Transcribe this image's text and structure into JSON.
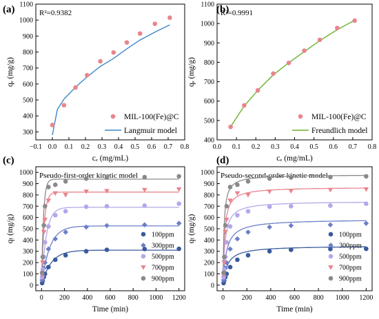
{
  "chart_data": [
    {
      "panel": "(a)",
      "type": "scatter",
      "annotation": "R²=0.9382",
      "xlabel": "cₑ (mg/mL)",
      "ylabel": "qₑ (mg/g)",
      "xlim": [
        -0.1,
        0.8
      ],
      "ylim": [
        250,
        1100
      ],
      "xticks": [
        "−0.1",
        "0.0",
        "0.1",
        "0.2",
        "0.3",
        "0.4",
        "0.5",
        "0.6",
        "0.7",
        "0.8"
      ],
      "yticks": [
        "300",
        "400",
        "500",
        "600",
        "700",
        "800",
        "900",
        "1000",
        "1100"
      ],
      "series": [
        {
          "name": "MIL-100(Fe)@C",
          "marker": "circle",
          "color": "#e8858d",
          "x": [
            0.0,
            0.07,
            0.14,
            0.21,
            0.29,
            0.37,
            0.45,
            0.53,
            0.62,
            0.71
          ],
          "y": [
            343,
            467,
            578,
            655,
            742,
            797,
            860,
            916,
            977,
            1015
          ]
        },
        {
          "name": "Langmuir model",
          "line": true,
          "color": "#3a86c8",
          "x": [
            0.0,
            0.03,
            0.07,
            0.14,
            0.21,
            0.29,
            0.37,
            0.45,
            0.53,
            0.62,
            0.71
          ],
          "y": [
            280,
            440,
            505,
            580,
            645,
            710,
            760,
            820,
            875,
            925,
            970
          ]
        }
      ]
    },
    {
      "panel": "(b)",
      "type": "scatter",
      "annotation": "R²=0.9991",
      "xlabel": "cₑ (mg/mL)",
      "ylabel": "qₑ (mg/g)",
      "xlim": [
        0.0,
        0.8
      ],
      "ylim": [
        400,
        1100
      ],
      "xticks": [
        "0.0",
        "0.1",
        "0.2",
        "0.3",
        "0.4",
        "0.5",
        "0.6",
        "0.7",
        "0.8"
      ],
      "yticks": [
        "400",
        "500",
        "600",
        "700",
        "800",
        "900",
        "1000",
        "1100"
      ],
      "series": [
        {
          "name": "MIL-100(Fe)@C",
          "marker": "circle",
          "color": "#e8858d",
          "x": [
            0.07,
            0.14,
            0.21,
            0.29,
            0.37,
            0.45,
            0.53,
            0.62,
            0.71
          ],
          "y": [
            467,
            578,
            655,
            742,
            797,
            860,
            916,
            977,
            1015
          ]
        },
        {
          "name": "Freundlich model",
          "line": true,
          "color": "#6ab02e",
          "x": [
            0.07,
            0.14,
            0.21,
            0.29,
            0.37,
            0.45,
            0.53,
            0.62,
            0.71
          ],
          "y": [
            468,
            575,
            655,
            735,
            798,
            855,
            912,
            968,
            1017
          ]
        }
      ]
    },
    {
      "panel": "(c)",
      "type": "scatter",
      "annotation": "Pseudo-first-order kinetic model",
      "xlabel": "Time (min)",
      "ylabel": "qₜ (mg/g)",
      "xlim": [
        -50,
        1250
      ],
      "ylim": [
        -50,
        1050
      ],
      "xticks": [
        "0",
        "200",
        "400",
        "600",
        "800",
        "1000",
        "1200"
      ],
      "yticks": [
        "0",
        "100",
        "200",
        "300",
        "400",
        "500",
        "600",
        "700",
        "800",
        "900",
        "1000"
      ],
      "x": [
        5,
        10,
        20,
        30,
        60,
        120,
        210,
        390,
        570,
        900,
        1200
      ],
      "series": [
        {
          "name": "100ppm",
          "marker": "circle",
          "color": "#3a5a9c",
          "qe": 310,
          "k": 0.012,
          "values": [
            18,
            40,
            72,
            100,
            160,
            225,
            265,
            300,
            313,
            320,
            322
          ]
        },
        {
          "name": "300ppm",
          "marker": "diamond",
          "color": "#6c7fc7",
          "qe": 525,
          "k": 0.014,
          "values": [
            45,
            85,
            150,
            200,
            320,
            410,
            470,
            515,
            528,
            535,
            548
          ]
        },
        {
          "name": "500ppm",
          "marker": "circle",
          "color": "#b3a8ea",
          "qe": 690,
          "k": 0.024,
          "values": [
            70,
            140,
            250,
            380,
            520,
            620,
            655,
            695,
            700,
            705,
            722
          ]
        },
        {
          "name": "700ppm",
          "marker": "triangle-down",
          "color": "#e8858d",
          "qe": 825,
          "k": 0.045,
          "values": [
            90,
            200,
            470,
            580,
            750,
            815,
            800,
            830,
            835,
            845,
            850
          ]
        },
        {
          "name": "900ppm",
          "marker": "circle",
          "color": "#8a8a8a",
          "qe": 940,
          "k": 0.06,
          "values": [
            110,
            250,
            530,
            700,
            870,
            890,
            920,
            945,
            955,
            958,
            965
          ]
        }
      ]
    },
    {
      "panel": "(d)",
      "type": "scatter",
      "annotation": "Pseudo-second-order kinetic model",
      "xlabel": "Time (min)",
      "ylabel": "qₜ (mg/g)",
      "xlim": [
        -50,
        1250
      ],
      "ylim": [
        -50,
        1050
      ],
      "xticks": [
        "0",
        "200",
        "400",
        "600",
        "800",
        "1000",
        "1200"
      ],
      "yticks": [
        "0",
        "100",
        "200",
        "300",
        "400",
        "500",
        "600",
        "700",
        "800",
        "900",
        "1000"
      ],
      "x": [
        5,
        10,
        20,
        30,
        60,
        120,
        210,
        390,
        570,
        900,
        1200
      ],
      "series": [
        {
          "name": "100ppm",
          "marker": "circle",
          "color": "#3a5a9c",
          "qe": 350,
          "k2": 8e-05,
          "values": [
            18,
            40,
            72,
            100,
            160,
            225,
            265,
            300,
            313,
            320,
            322
          ]
        },
        {
          "name": "300ppm",
          "marker": "diamond",
          "color": "#6c7fc7",
          "qe": 585,
          "k2": 6e-05,
          "values": [
            45,
            85,
            150,
            200,
            320,
            410,
            470,
            515,
            528,
            535,
            548
          ]
        },
        {
          "name": "500ppm",
          "marker": "circle",
          "color": "#b3a8ea",
          "qe": 745,
          "k2": 8e-05,
          "values": [
            70,
            140,
            250,
            380,
            520,
            620,
            655,
            695,
            700,
            705,
            722
          ]
        },
        {
          "name": "700ppm",
          "marker": "triangle-down",
          "color": "#e8858d",
          "qe": 870,
          "k2": 9e-05,
          "values": [
            90,
            200,
            470,
            580,
            750,
            815,
            800,
            830,
            835,
            845,
            850
          ]
        },
        {
          "name": "900ppm",
          "marker": "circle",
          "color": "#8a8a8a",
          "qe": 980,
          "k2": 0.00012,
          "values": [
            110,
            250,
            530,
            700,
            870,
            890,
            920,
            945,
            955,
            958,
            965
          ]
        }
      ]
    }
  ]
}
